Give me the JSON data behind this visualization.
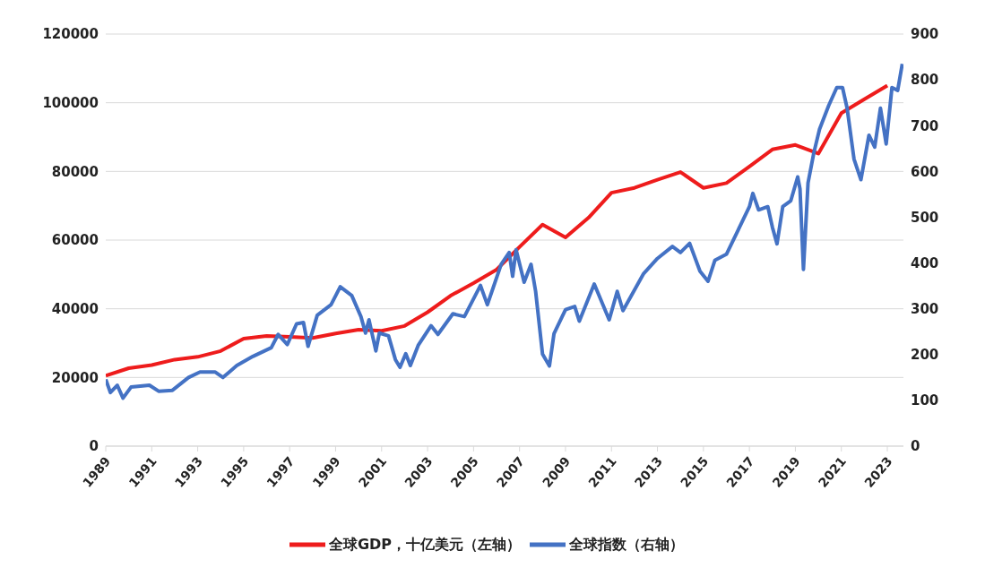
{
  "chart_data": {
    "type": "line",
    "xlim": [
      1989,
      2023.7
    ],
    "xticks": [
      1989,
      1991,
      1993,
      1995,
      1997,
      1999,
      2001,
      2003,
      2005,
      2007,
      2009,
      2011,
      2013,
      2015,
      2017,
      2019,
      2021,
      2023
    ],
    "ylim": [
      0,
      120000
    ],
    "yticks": [
      0,
      20000,
      40000,
      60000,
      80000,
      100000,
      120000
    ],
    "y2lim": [
      0,
      900
    ],
    "y2ticks": [
      0,
      100,
      200,
      300,
      400,
      500,
      600,
      700,
      800,
      900
    ],
    "grid": "y",
    "legend": "bottom",
    "marker": "none",
    "line_style": "solid",
    "series": [
      {
        "name": "全球GDP，十亿美元（左轴）",
        "color": "#ee1c1c",
        "x": [
          1989,
          1990,
          1991,
          1992,
          1993,
          1994,
          1995,
          1996,
          1997,
          1998,
          1999,
          2000,
          2001,
          2002,
          2003,
          2004,
          2005,
          2006,
          2007,
          2008,
          2009,
          2010,
          2011,
          2012,
          2013,
          2014,
          2015,
          2016,
          2017,
          2018,
          2019,
          2020,
          2021,
          2022,
          2023
        ],
        "values": [
          20500,
          22700,
          23600,
          25200,
          26000,
          27700,
          31300,
          32100,
          31800,
          31500,
          32800,
          33900,
          33600,
          35000,
          39000,
          43800,
          47500,
          51400,
          58000,
          64500,
          60800,
          66500,
          73800,
          75200,
          77600,
          79800,
          75200,
          76600,
          81400,
          86400,
          87700,
          85200,
          97000,
          101000,
          105000
        ]
      },
      {
        "name": "全球指数（右轴）",
        "color": "#4472c4",
        "axis": "y2",
        "x": [
          1989,
          1989.2,
          1989.5,
          1989.75,
          1990.1,
          1990.9,
          1991.3,
          1991.9,
          1992.6,
          1993.1,
          1993.75,
          1994.1,
          1994.7,
          1995.4,
          1996.2,
          1996.5,
          1996.9,
          1997.3,
          1997.6,
          1997.8,
          1998.2,
          1998.8,
          1999.2,
          1999.7,
          2000.1,
          2000.3,
          2000.45,
          2000.75,
          2000.9,
          2001.3,
          2001.6,
          2001.8,
          2002.05,
          2002.25,
          2002.6,
          2003.15,
          2003.45,
          2004.1,
          2004.6,
          2005.3,
          2005.6,
          2006.2,
          2006.55,
          2006.7,
          2006.85,
          2007.2,
          2007.5,
          2007.7,
          2008.0,
          2008.3,
          2008.5,
          2009.0,
          2009.4,
          2009.6,
          2010.25,
          2010.9,
          2011.25,
          2011.5,
          2012.4,
          2013.0,
          2013.65,
          2014.0,
          2014.4,
          2014.85,
          2015.2,
          2015.5,
          2016.0,
          2016.5,
          2017.0,
          2017.15,
          2017.4,
          2017.8,
          2018.0,
          2018.2,
          2018.45,
          2018.8,
          2019.1,
          2019.2,
          2019.35,
          2019.55,
          2019.8,
          2020.05,
          2020.45,
          2020.8,
          2021.05,
          2021.25,
          2021.55,
          2021.85,
          2022.2,
          2022.45,
          2022.7,
          2022.95,
          2023.2,
          2023.45,
          2023.65
        ],
        "values": [
          146,
          117,
          133,
          105,
          129,
          133,
          120,
          122,
          150,
          162,
          162,
          150,
          176,
          196,
          215,
          244,
          222,
          267,
          270,
          218,
          286,
          309,
          348,
          329,
          283,
          247,
          276,
          208,
          247,
          241,
          189,
          172,
          202,
          176,
          221,
          263,
          244,
          289,
          283,
          351,
          309,
          397,
          423,
          371,
          429,
          358,
          397,
          338,
          201,
          175,
          246,
          298,
          305,
          273,
          354,
          276,
          338,
          296,
          377,
          410,
          436,
          423,
          443,
          382,
          360,
          406,
          419,
          471,
          523,
          552,
          516,
          523,
          478,
          442,
          523,
          536,
          588,
          562,
          386,
          575,
          640,
          692,
          744,
          783,
          783,
          738,
          627,
          582,
          679,
          653,
          738,
          660,
          783,
          777,
          835
        ]
      }
    ]
  }
}
